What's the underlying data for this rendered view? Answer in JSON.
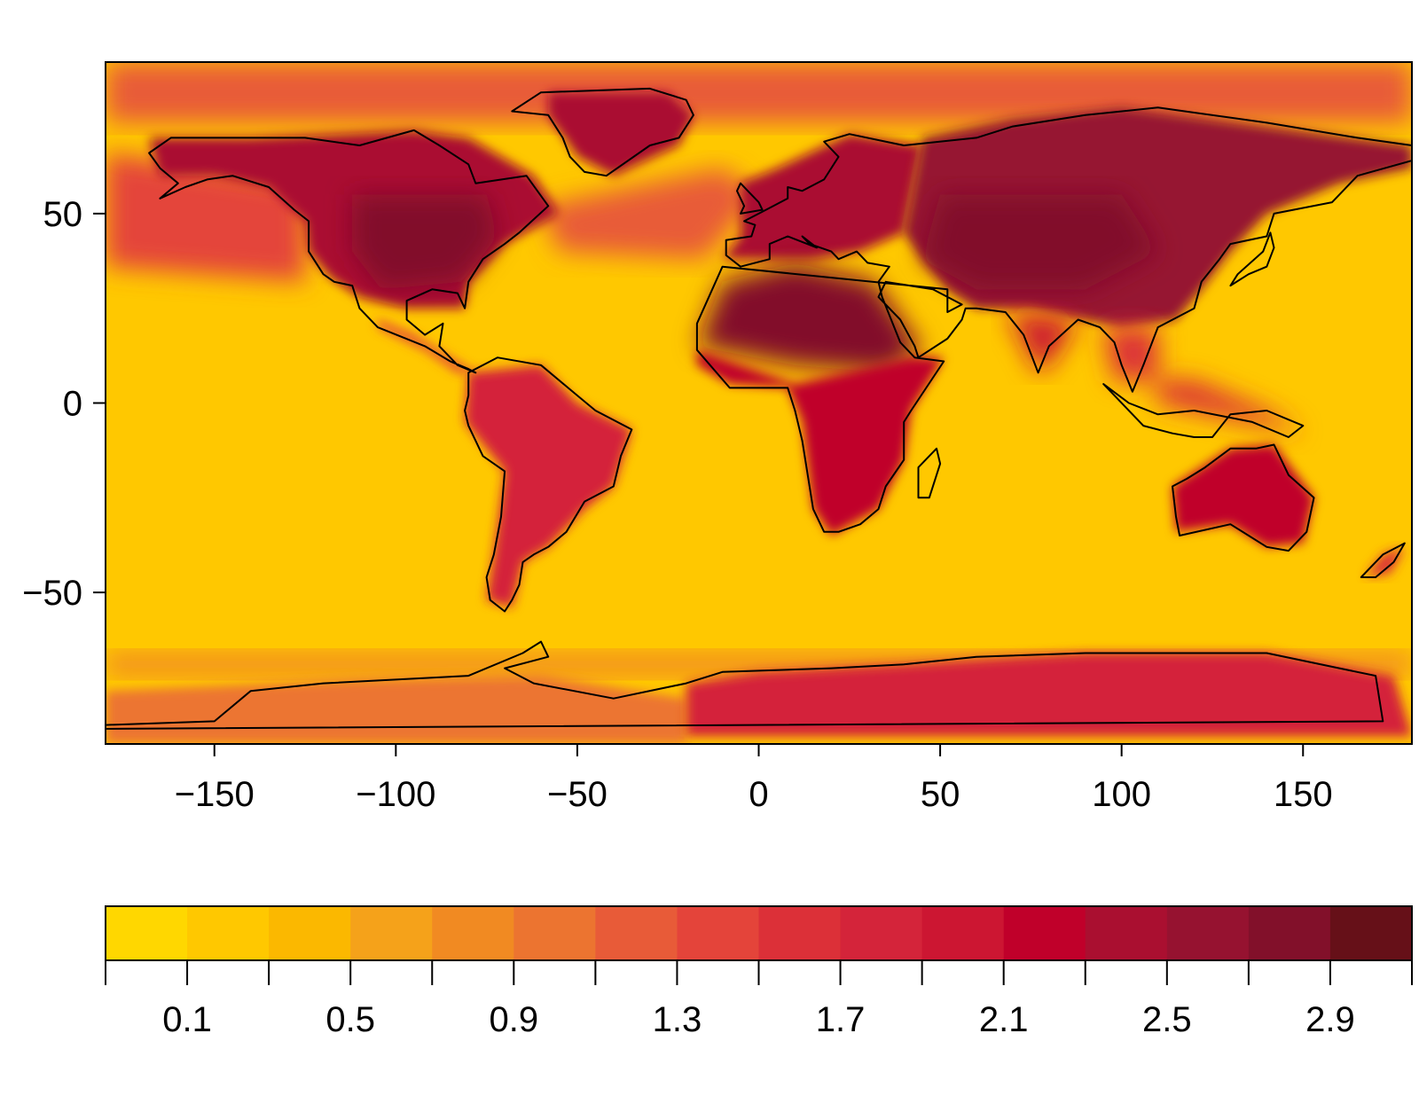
{
  "chart_data": {
    "type": "heatmap",
    "title": "",
    "xlabel": "",
    "ylabel": "",
    "xlim": [
      -180,
      180
    ],
    "ylim": [
      -90,
      90
    ],
    "x_ticks": [
      -150,
      -100,
      -50,
      0,
      50,
      100,
      150
    ],
    "x_tick_labels": [
      "−150",
      "−100",
      "−50",
      "0",
      "50",
      "100",
      "150"
    ],
    "y_ticks": [
      -50,
      0,
      50
    ],
    "y_tick_labels": [
      "−50",
      "0",
      "50"
    ],
    "grid": false,
    "legend": "colorbar-bottom",
    "colorbar": {
      "breaks": [
        -0.1,
        0.1,
        0.3,
        0.5,
        0.7,
        0.9,
        1.1,
        1.3,
        1.5,
        1.7,
        1.9,
        2.1,
        2.3,
        2.5,
        2.7,
        2.9,
        3.1
      ],
      "tick_values": [
        0.1,
        0.5,
        0.9,
        1.3,
        1.7,
        2.1,
        2.5,
        2.9
      ],
      "tick_labels": [
        "0.1",
        "0.5",
        "0.9",
        "1.3",
        "1.7",
        "2.1",
        "2.5",
        "2.9"
      ],
      "colors": [
        "#ffd700",
        "#ffc800",
        "#fbb800",
        "#f5a21a",
        "#f18a22",
        "#ec7430",
        "#e85b38",
        "#e4443a",
        "#dc3038",
        "#d4243a",
        "#cc1632",
        "#c0002a",
        "#aa0f30",
        "#961230",
        "#82102a",
        "#661018"
      ]
    },
    "fields": [
      {
        "region": "ocean-background",
        "value": 0.2
      },
      {
        "region": "arctic-ocean",
        "value": 1.2
      },
      {
        "region": "north-pacific",
        "value": 1.3
      },
      {
        "region": "north-atlantic",
        "value": 1.1
      },
      {
        "region": "southern-ocean",
        "value": 0.8
      },
      {
        "region": "antarctica-west",
        "value": 1.0
      },
      {
        "region": "antarctica-east",
        "value": 1.7
      },
      {
        "region": "north-america",
        "value": 2.3
      },
      {
        "region": "central-north-america",
        "value": 2.7
      },
      {
        "region": "greenland",
        "value": 2.3
      },
      {
        "region": "central-america",
        "value": 1.3
      },
      {
        "region": "south-america",
        "value": 1.8
      },
      {
        "region": "europe",
        "value": 2.3
      },
      {
        "region": "sahara",
        "value": 2.7
      },
      {
        "region": "africa-south",
        "value": 2.2
      },
      {
        "region": "asia",
        "value": 2.5
      },
      {
        "region": "central-asia",
        "value": 2.8
      },
      {
        "region": "india",
        "value": 1.9
      },
      {
        "region": "southeast-asia",
        "value": 1.5
      },
      {
        "region": "australia",
        "value": 2.1
      },
      {
        "region": "new-zealand",
        "value": 1.5
      }
    ]
  }
}
